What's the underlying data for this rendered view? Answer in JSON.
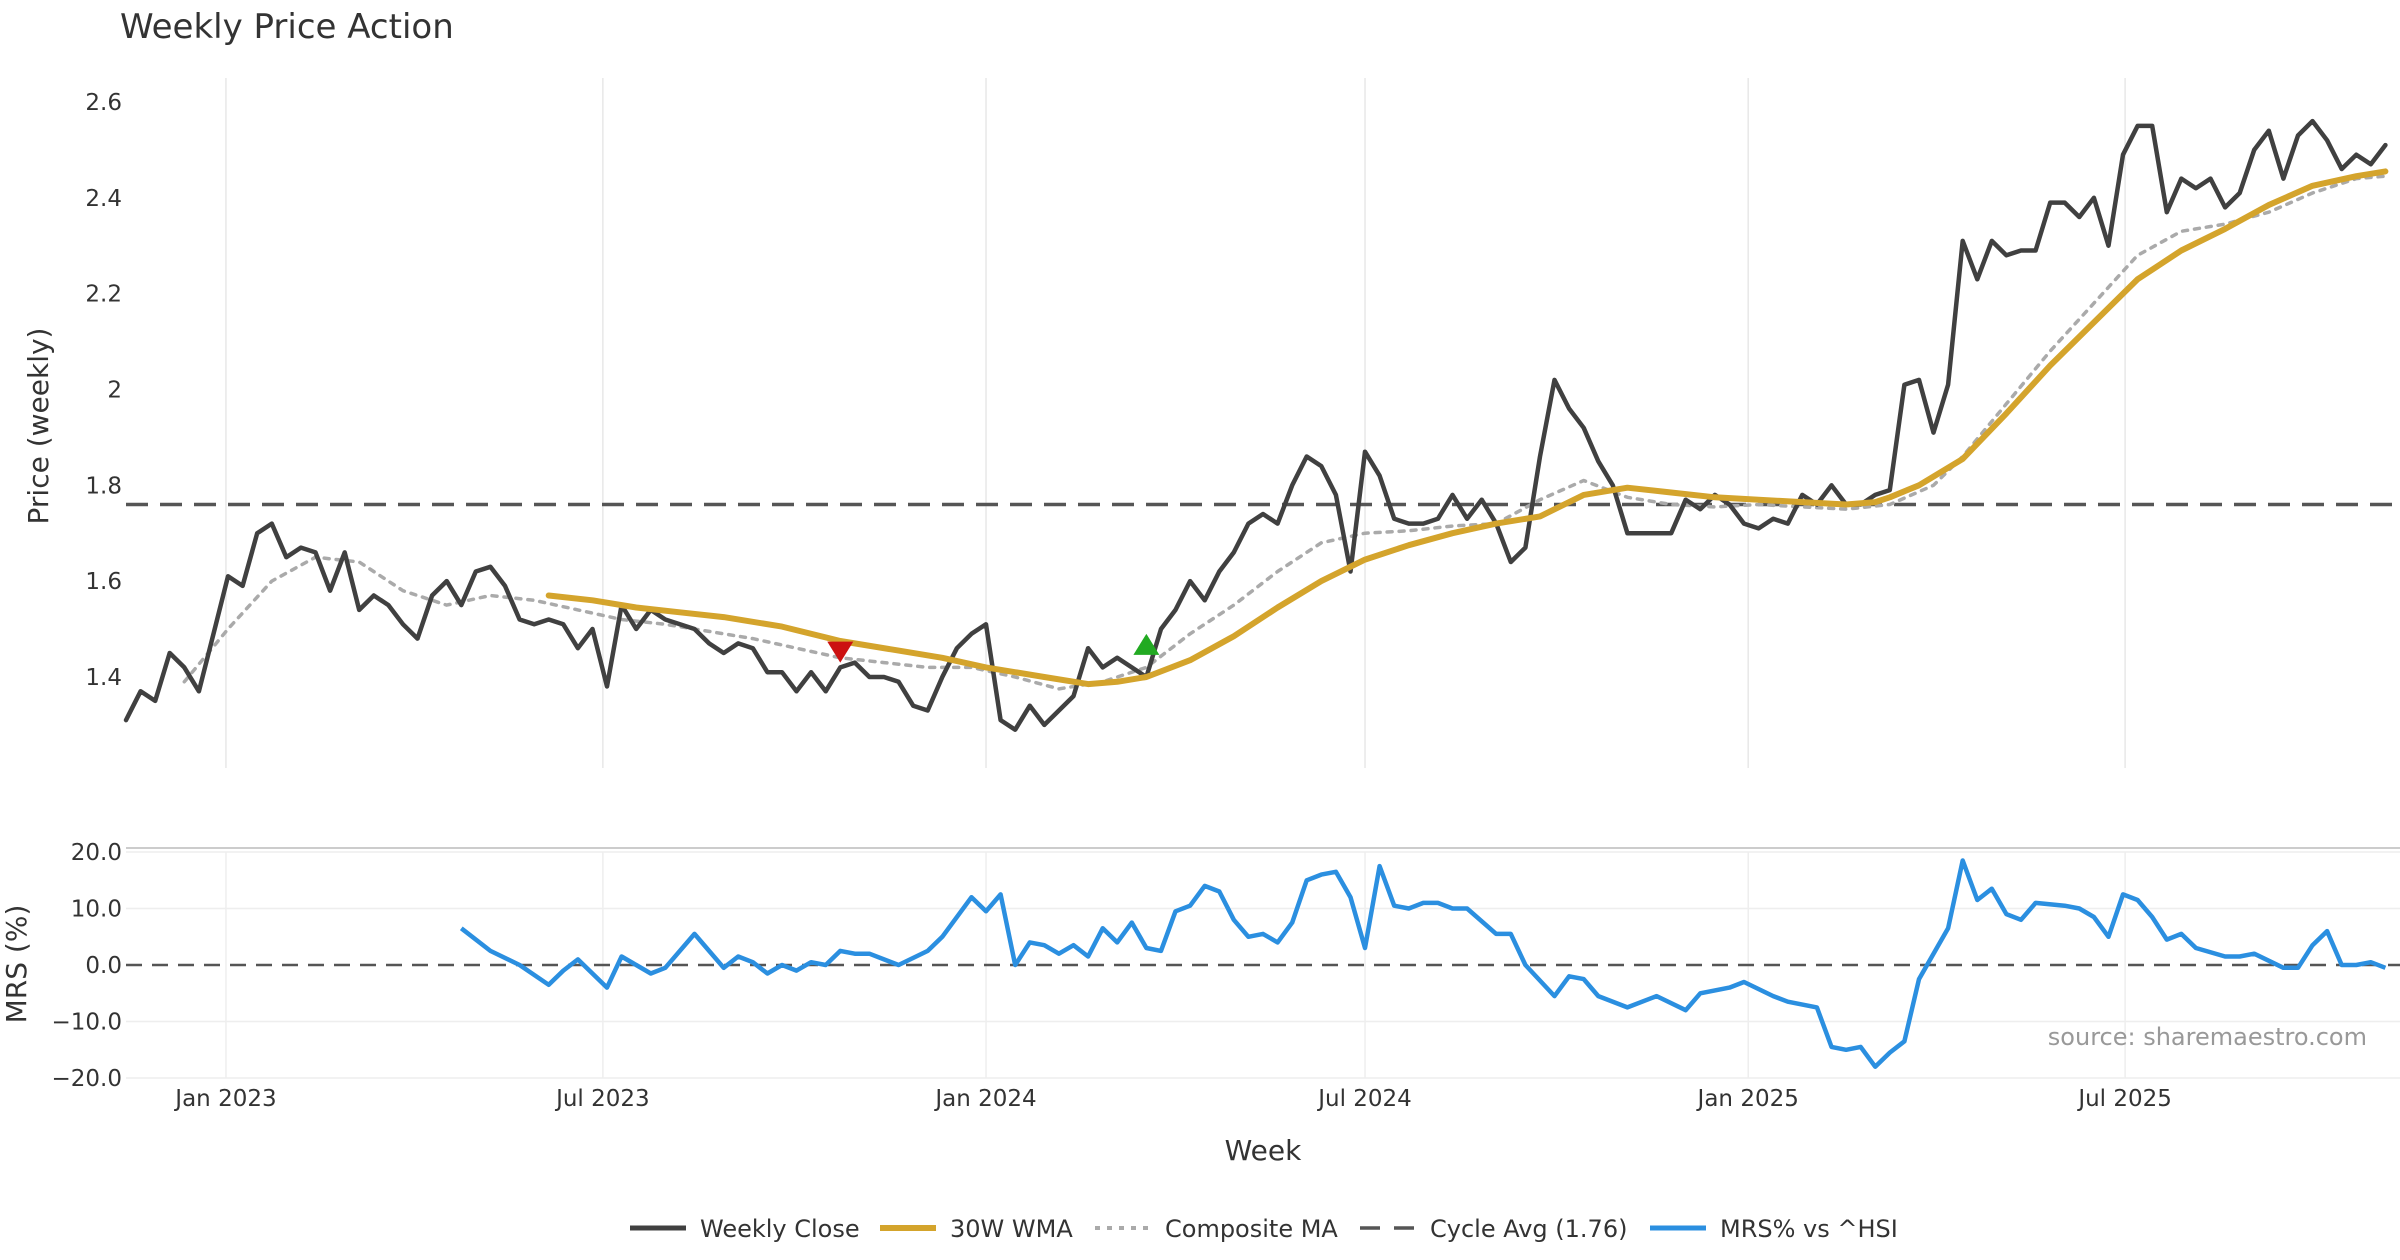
{
  "chart_data": [
    {
      "type": "line",
      "title": "Weekly Price Action",
      "ylabel": "Price (weekly)",
      "xlabel": "",
      "ylim": [
        1.21,
        2.65
      ],
      "yticks": [
        1.4,
        1.6,
        1.8,
        2.0,
        2.2,
        2.4,
        2.6
      ],
      "ytick_labels": [
        "1.4",
        "1.6",
        "1.8",
        "2",
        "2.2",
        "2.4",
        "2.6"
      ],
      "grid": true,
      "reference_line": {
        "name": "Cycle Avg (1.76)",
        "value": 1.76
      },
      "markers": [
        {
          "type": "sell",
          "shape": "triangle-down",
          "date": "2023-10-23",
          "value": 1.455,
          "color": "#cc1111"
        },
        {
          "type": "buy",
          "shape": "triangle-up",
          "date": "2024-03-18",
          "value": 1.465,
          "color": "#22aa22"
        }
      ],
      "series": [
        {
          "name": "Weekly Close",
          "color": "#404040",
          "x": [
            "2022-11-14",
            "2022-11-21",
            "2022-11-28",
            "2022-12-05",
            "2022-12-12",
            "2022-12-19",
            "2022-12-26",
            "2023-01-02",
            "2023-01-09",
            "2023-01-16",
            "2023-01-23",
            "2023-01-30",
            "2023-02-06",
            "2023-02-13",
            "2023-02-20",
            "2023-02-27",
            "2023-03-06",
            "2023-03-13",
            "2023-03-20",
            "2023-03-27",
            "2023-04-03",
            "2023-04-10",
            "2023-04-17",
            "2023-04-24",
            "2023-05-01",
            "2023-05-08",
            "2023-05-15",
            "2023-05-22",
            "2023-05-29",
            "2023-06-05",
            "2023-06-12",
            "2023-06-19",
            "2023-06-26",
            "2023-07-03",
            "2023-07-10",
            "2023-07-17",
            "2023-07-24",
            "2023-07-31",
            "2023-08-07",
            "2023-08-14",
            "2023-08-21",
            "2023-08-28",
            "2023-09-04",
            "2023-09-11",
            "2023-09-18",
            "2023-09-25",
            "2023-10-02",
            "2023-10-09",
            "2023-10-16",
            "2023-10-23",
            "2023-10-30",
            "2023-11-06",
            "2023-11-13",
            "2023-11-20",
            "2023-11-27",
            "2023-12-04",
            "2023-12-11",
            "2023-12-18",
            "2023-12-25",
            "2024-01-01",
            "2024-01-08",
            "2024-01-15",
            "2024-01-22",
            "2024-01-29",
            "2024-02-05",
            "2024-02-12",
            "2024-02-19",
            "2024-02-26",
            "2024-03-04",
            "2024-03-11",
            "2024-03-18",
            "2024-03-25",
            "2024-04-01",
            "2024-04-08",
            "2024-04-15",
            "2024-04-22",
            "2024-04-29",
            "2024-05-06",
            "2024-05-13",
            "2024-05-20",
            "2024-05-27",
            "2024-06-03",
            "2024-06-10",
            "2024-06-17",
            "2024-06-24",
            "2024-07-01",
            "2024-07-08",
            "2024-07-15",
            "2024-07-22",
            "2024-07-29",
            "2024-08-05",
            "2024-08-12",
            "2024-08-19",
            "2024-08-26",
            "2024-09-02",
            "2024-09-09",
            "2024-09-16",
            "2024-09-23",
            "2024-09-30",
            "2024-10-07",
            "2024-10-14",
            "2024-10-21",
            "2024-10-28",
            "2024-11-04",
            "2024-11-11",
            "2024-11-18",
            "2024-11-25",
            "2024-12-02",
            "2024-12-09",
            "2024-12-16",
            "2024-12-23",
            "2024-12-30",
            "2025-01-06",
            "2025-01-13",
            "2025-01-20",
            "2025-01-27",
            "2025-02-03",
            "2025-02-10",
            "2025-02-17",
            "2025-02-24",
            "2025-03-03",
            "2025-03-10",
            "2025-03-17",
            "2025-03-24",
            "2025-03-31",
            "2025-04-07",
            "2025-04-14",
            "2025-04-21",
            "2025-04-28",
            "2025-05-05",
            "2025-05-12",
            "2025-05-19",
            "2025-05-26",
            "2025-06-02",
            "2025-06-09",
            "2025-06-16",
            "2025-06-23",
            "2025-06-30",
            "2025-07-07",
            "2025-07-14",
            "2025-07-21",
            "2025-07-28",
            "2025-08-04",
            "2025-08-11",
            "2025-08-18",
            "2025-08-25",
            "2025-09-01",
            "2025-09-08",
            "2025-09-15",
            "2025-09-22",
            "2025-09-29",
            "2025-10-06",
            "2025-10-13",
            "2025-10-20",
            "2025-10-27",
            "2025-11-03"
          ],
          "values": [
            1.31,
            1.37,
            1.35,
            1.45,
            1.42,
            1.37,
            1.49,
            1.61,
            1.59,
            1.7,
            1.72,
            1.65,
            1.67,
            1.66,
            1.58,
            1.66,
            1.54,
            1.57,
            1.55,
            1.51,
            1.48,
            1.57,
            1.6,
            1.55,
            1.62,
            1.63,
            1.59,
            1.52,
            1.51,
            1.52,
            1.51,
            1.46,
            1.5,
            1.38,
            1.55,
            1.5,
            1.54,
            1.52,
            1.51,
            1.5,
            1.47,
            1.45,
            1.47,
            1.46,
            1.41,
            1.41,
            1.37,
            1.41,
            1.37,
            1.42,
            1.43,
            1.4,
            1.4,
            1.39,
            1.34,
            1.33,
            1.4,
            1.46,
            1.49,
            1.51,
            1.31,
            1.29,
            1.34,
            1.3,
            1.33,
            1.36,
            1.46,
            1.42,
            1.44,
            1.42,
            1.4,
            1.5,
            1.54,
            1.6,
            1.56,
            1.62,
            1.66,
            1.72,
            1.74,
            1.72,
            1.8,
            1.86,
            1.84,
            1.78,
            1.62,
            1.87,
            1.82,
            1.73,
            1.72,
            1.72,
            1.73,
            1.78,
            1.73,
            1.77,
            1.72,
            1.64,
            1.67,
            1.86,
            2.02,
            1.96,
            1.92,
            1.85,
            1.8,
            1.7,
            1.7,
            1.7,
            1.7,
            1.77,
            1.75,
            1.78,
            1.76,
            1.72,
            1.71,
            1.73,
            1.72,
            1.78,
            1.76,
            1.8,
            1.76,
            1.76,
            1.78,
            1.79,
            2.01,
            2.02,
            1.91,
            2.01,
            2.31,
            2.23,
            2.31,
            2.28,
            2.29,
            2.29,
            2.39,
            2.39,
            2.36,
            2.4,
            2.3,
            2.49,
            2.55,
            2.55,
            2.37,
            2.44,
            2.42,
            2.44,
            2.38,
            2.41,
            2.5,
            2.54,
            2.44,
            2.53,
            2.56,
            2.52,
            2.46,
            2.49,
            2.47,
            2.51
          ]
        },
        {
          "name": "30W WMA",
          "color": "#d4a42c",
          "x": [
            "2023-06-05",
            "2023-06-26",
            "2023-07-17",
            "2023-08-07",
            "2023-08-28",
            "2023-09-25",
            "2023-10-23",
            "2023-11-20",
            "2023-12-11",
            "2024-01-01",
            "2024-01-29",
            "2024-02-19",
            "2024-03-04",
            "2024-03-18",
            "2024-04-08",
            "2024-04-29",
            "2024-05-20",
            "2024-06-10",
            "2024-07-01",
            "2024-07-22",
            "2024-08-12",
            "2024-09-02",
            "2024-09-23",
            "2024-10-14",
            "2024-11-04",
            "2024-11-25",
            "2024-12-16",
            "2025-01-06",
            "2025-01-27",
            "2025-02-17",
            "2025-03-03",
            "2025-03-10",
            "2025-03-24",
            "2025-04-14",
            "2025-05-05",
            "2025-05-26",
            "2025-06-16",
            "2025-07-07",
            "2025-07-28",
            "2025-08-18",
            "2025-09-08",
            "2025-09-29",
            "2025-10-20",
            "2025-11-03"
          ],
          "values": [
            1.57,
            1.56,
            1.545,
            1.535,
            1.525,
            1.505,
            1.475,
            1.455,
            1.44,
            1.42,
            1.4,
            1.385,
            1.39,
            1.4,
            1.435,
            1.485,
            1.545,
            1.6,
            1.645,
            1.675,
            1.7,
            1.72,
            1.735,
            1.78,
            1.795,
            1.785,
            1.775,
            1.77,
            1.765,
            1.76,
            1.765,
            1.775,
            1.8,
            1.855,
            1.95,
            2.05,
            2.14,
            2.23,
            2.29,
            2.335,
            2.385,
            2.425,
            2.445,
            2.455
          ]
        },
        {
          "name": "Composite MA",
          "color": "#aaaaaa",
          "x": [
            "2022-12-12",
            "2023-01-02",
            "2023-01-23",
            "2023-02-13",
            "2023-03-06",
            "2023-03-27",
            "2023-04-17",
            "2023-05-08",
            "2023-05-29",
            "2023-06-19",
            "2023-07-10",
            "2023-07-31",
            "2023-08-21",
            "2023-09-11",
            "2023-10-02",
            "2023-10-23",
            "2023-11-13",
            "2023-12-04",
            "2023-12-25",
            "2024-01-15",
            "2024-02-05",
            "2024-02-26",
            "2024-03-18",
            "2024-04-08",
            "2024-04-29",
            "2024-05-20",
            "2024-06-10",
            "2024-07-01",
            "2024-07-22",
            "2024-08-12",
            "2024-09-02",
            "2024-09-23",
            "2024-10-14",
            "2024-11-04",
            "2024-11-25",
            "2024-12-16",
            "2025-01-06",
            "2025-01-27",
            "2025-02-17",
            "2025-03-10",
            "2025-03-31",
            "2025-04-14",
            "2025-05-05",
            "2025-05-26",
            "2025-06-16",
            "2025-07-07",
            "2025-07-28",
            "2025-08-18",
            "2025-09-08",
            "2025-09-29",
            "2025-10-20",
            "2025-11-03"
          ],
          "values": [
            1.39,
            1.5,
            1.6,
            1.65,
            1.64,
            1.58,
            1.55,
            1.57,
            1.56,
            1.54,
            1.52,
            1.51,
            1.495,
            1.48,
            1.46,
            1.44,
            1.43,
            1.42,
            1.42,
            1.4,
            1.375,
            1.39,
            1.42,
            1.49,
            1.55,
            1.62,
            1.68,
            1.7,
            1.705,
            1.715,
            1.72,
            1.77,
            1.81,
            1.775,
            1.76,
            1.755,
            1.76,
            1.755,
            1.75,
            1.76,
            1.8,
            1.86,
            1.97,
            2.08,
            2.18,
            2.28,
            2.33,
            2.345,
            2.37,
            2.41,
            2.44,
            2.445
          ]
        }
      ]
    },
    {
      "type": "line",
      "title": "",
      "ylabel": "MRS (%)",
      "xlabel": "Week",
      "ylim": [
        -20,
        20
      ],
      "yticks": [
        -20,
        -10,
        0,
        10,
        20
      ],
      "ytick_labels": [
        "−20.0",
        "−10.0",
        "0.0",
        "10.0",
        "20.0"
      ],
      "reference_line": {
        "value": 0
      },
      "xticks": [
        "2023-01-01",
        "2023-07-01",
        "2024-01-01",
        "2024-07-01",
        "2025-01-01",
        "2025-07-01"
      ],
      "xtick_labels": [
        "Jan 2023",
        "Jul 2023",
        "Jan 2024",
        "Jul 2024",
        "Jan 2025",
        "Jul 2025"
      ],
      "series": [
        {
          "name": "MRS% vs ^HSI",
          "color": "#2b8fe0",
          "x": [
            "2023-04-24",
            "2023-05-08",
            "2023-05-22",
            "2023-06-05",
            "2023-06-12",
            "2023-06-19",
            "2023-07-03",
            "2023-07-10",
            "2023-07-17",
            "2023-07-24",
            "2023-07-31",
            "2023-08-14",
            "2023-08-21",
            "2023-08-28",
            "2023-09-04",
            "2023-09-11",
            "2023-09-18",
            "2023-09-25",
            "2023-10-02",
            "2023-10-09",
            "2023-10-16",
            "2023-10-23",
            "2023-10-30",
            "2023-11-06",
            "2023-11-13",
            "2023-11-20",
            "2023-12-04",
            "2023-12-11",
            "2023-12-25",
            "2024-01-01",
            "2024-01-08",
            "2024-01-15",
            "2024-01-22",
            "2024-01-29",
            "2024-02-05",
            "2024-02-12",
            "2024-02-19",
            "2024-02-26",
            "2024-03-04",
            "2024-03-11",
            "2024-03-18",
            "2024-03-25",
            "2024-04-01",
            "2024-04-08",
            "2024-04-15",
            "2024-04-22",
            "2024-04-29",
            "2024-05-06",
            "2024-05-13",
            "2024-05-20",
            "2024-05-27",
            "2024-06-03",
            "2024-06-10",
            "2024-06-17",
            "2024-06-24",
            "2024-07-01",
            "2024-07-08",
            "2024-07-15",
            "2024-07-22",
            "2024-07-29",
            "2024-08-05",
            "2024-08-12",
            "2024-08-19",
            "2024-09-02",
            "2024-09-09",
            "2024-09-16",
            "2024-09-30",
            "2024-10-07",
            "2024-10-14",
            "2024-10-21",
            "2024-11-04",
            "2024-11-18",
            "2024-12-02",
            "2024-12-09",
            "2024-12-16",
            "2024-12-23",
            "2024-12-30",
            "2025-01-13",
            "2025-01-20",
            "2025-02-03",
            "2025-02-10",
            "2025-02-17",
            "2025-02-24",
            "2025-03-03",
            "2025-03-10",
            "2025-03-17",
            "2025-03-24",
            "2025-04-07",
            "2025-04-14",
            "2025-04-21",
            "2025-04-28",
            "2025-05-05",
            "2025-05-12",
            "2025-05-19",
            "2025-06-02",
            "2025-06-09",
            "2025-06-16",
            "2025-06-23",
            "2025-06-30",
            "2025-07-07",
            "2025-07-14",
            "2025-07-21",
            "2025-07-28",
            "2025-08-04",
            "2025-08-18",
            "2025-08-25",
            "2025-09-01",
            "2025-09-15",
            "2025-09-22",
            "2025-09-29",
            "2025-10-06",
            "2025-10-13",
            "2025-10-20",
            "2025-10-27",
            "2025-11-03"
          ],
          "values": [
            6.5,
            2.5,
            0.0,
            -3.5,
            -1.0,
            1.0,
            -4.0,
            1.5,
            0.0,
            -1.5,
            -0.5,
            5.5,
            2.5,
            -0.5,
            1.5,
            0.5,
            -1.5,
            0.0,
            -1.0,
            0.5,
            0.0,
            2.5,
            2.0,
            2.0,
            1.0,
            0.0,
            2.5,
            5.0,
            12.0,
            9.5,
            12.5,
            0.0,
            4.0,
            3.5,
            2.0,
            3.5,
            1.5,
            6.5,
            4.0,
            7.5,
            3.0,
            2.5,
            9.5,
            10.5,
            14.0,
            13.0,
            8.0,
            5.0,
            5.5,
            4.0,
            7.5,
            15.0,
            16.0,
            16.5,
            12.0,
            3.0,
            17.5,
            10.5,
            10.0,
            11.0,
            11.0,
            10.0,
            10.0,
            5.5,
            5.5,
            0.0,
            -5.5,
            -2.0,
            -2.5,
            -5.5,
            -7.5,
            -5.5,
            -8.0,
            -5.0,
            -4.5,
            -4.0,
            -3.0,
            -5.5,
            -6.5,
            -7.5,
            -14.5,
            -15.0,
            -14.5,
            -18.0,
            -15.5,
            -13.5,
            -2.5,
            6.5,
            18.5,
            11.5,
            13.5,
            9.0,
            8.0,
            11.0,
            10.5,
            10.0,
            8.5,
            5.0,
            12.5,
            11.5,
            8.5,
            4.5,
            5.5,
            3.0,
            1.5,
            1.5,
            2.0,
            -0.5,
            -0.5,
            3.5,
            6.0,
            0.0,
            0.0,
            0.5,
            -0.5
          ]
        }
      ]
    }
  ],
  "legend": {
    "items": [
      {
        "label": "Weekly Close",
        "style": "solid",
        "color": "#404040"
      },
      {
        "label": "30W WMA",
        "style": "solid-thick",
        "color": "#d4a42c"
      },
      {
        "label": "Composite MA",
        "style": "dotted",
        "color": "#aaaaaa"
      },
      {
        "label": "Cycle Avg (1.76)",
        "style": "dashed",
        "color": "#555555"
      },
      {
        "label": "MRS% vs ^HSI",
        "style": "solid",
        "color": "#2b8fe0"
      }
    ],
    "placement": "bottom-center"
  },
  "source": "source: sharemaestro.com"
}
